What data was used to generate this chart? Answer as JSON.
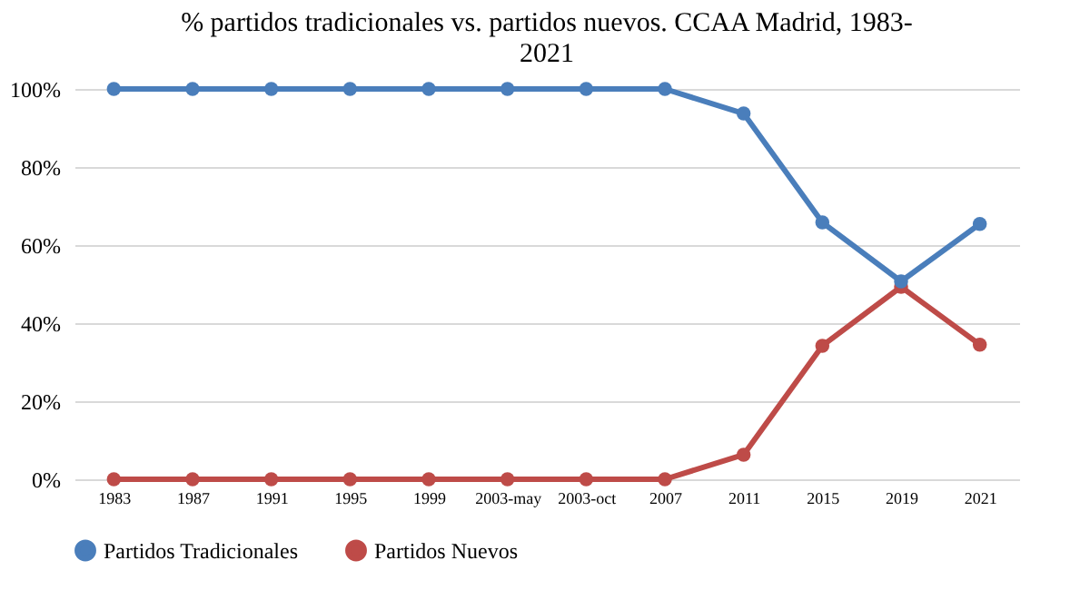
{
  "chart_data": {
    "type": "line",
    "title": "% partidos tradicionales vs. partidos nuevos. CCAA Madrid, 1983-2021",
    "categories": [
      "1983",
      "1987",
      "1991",
      "1995",
      "1999",
      "2003-may",
      "2003-oct",
      "2007",
      "2011",
      "2015",
      "2019",
      "2021"
    ],
    "series": [
      {
        "name": "Partidos Tradicionales",
        "color": "#4a7ebb",
        "values": [
          100,
          100,
          100,
          100,
          100,
          100,
          100,
          100,
          93.7,
          65.8,
          50.7,
          65.4
        ]
      },
      {
        "name": "Partidos Nuevos",
        "color": "#be4b48",
        "values": [
          0,
          0,
          0,
          0,
          0,
          0,
          0,
          0,
          6.3,
          34.2,
          49.3,
          34.5
        ]
      }
    ],
    "ylim": [
      0,
      100
    ],
    "yticks": [
      {
        "value": 0,
        "label": "0%"
      },
      {
        "value": 20,
        "label": "20%"
      },
      {
        "value": 40,
        "label": "40%"
      },
      {
        "value": 60,
        "label": "60%"
      },
      {
        "value": 80,
        "label": "80%"
      },
      {
        "value": 100,
        "label": "100%"
      }
    ],
    "grid": "y",
    "legend": "bottom",
    "marker": "circle",
    "line_style": "solid"
  }
}
